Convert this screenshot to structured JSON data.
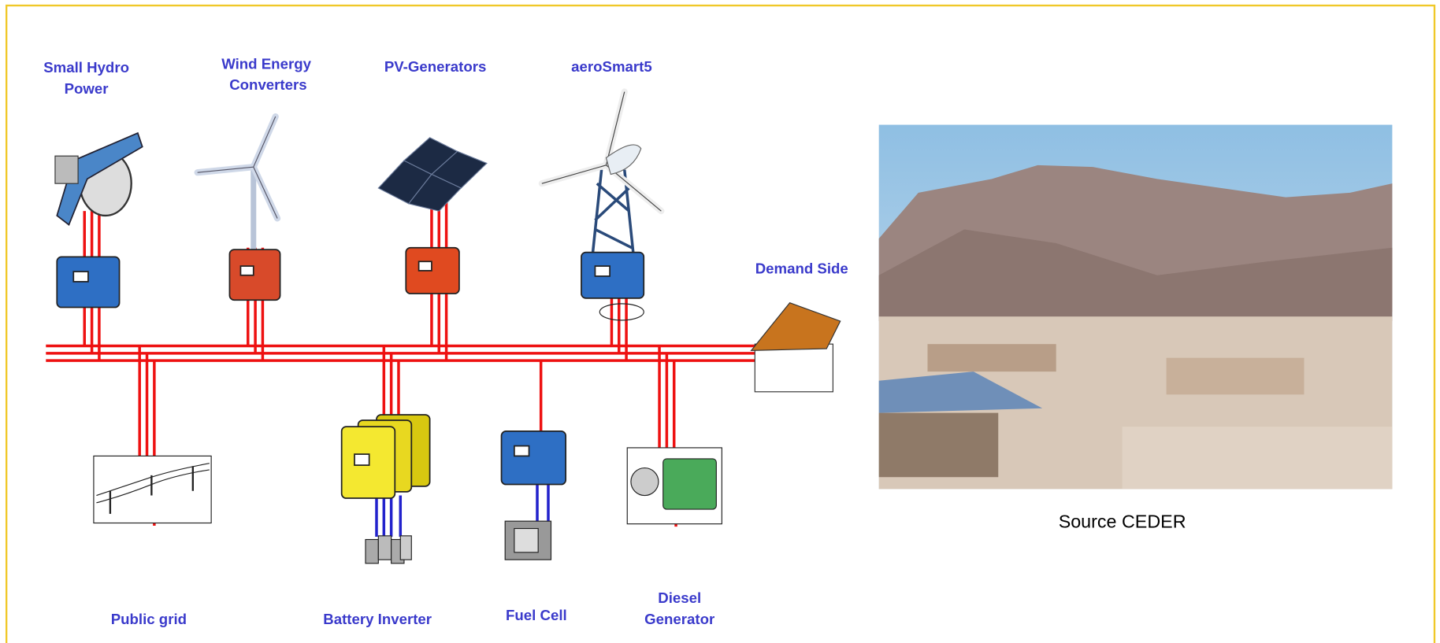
{
  "nodes": [
    {
      "label": [
        "Small Hydro",
        "Power"
      ]
    },
    {
      "label": [
        "Wind Energy",
        "Converters"
      ]
    },
    {
      "label": [
        "PV-Generators"
      ]
    },
    {
      "label": [
        "aeroSmart5"
      ]
    },
    {
      "label": [
        "Demand Side"
      ]
    },
    {
      "label": [
        "Public grid"
      ]
    },
    {
      "label": [
        "Battery Inverter"
      ]
    },
    {
      "label": [
        "Fuel Cell"
      ]
    },
    {
      "label": [
        "Diesel",
        "Generator"
      ]
    }
  ],
  "photo": {
    "caption": "Source CEDER"
  }
}
